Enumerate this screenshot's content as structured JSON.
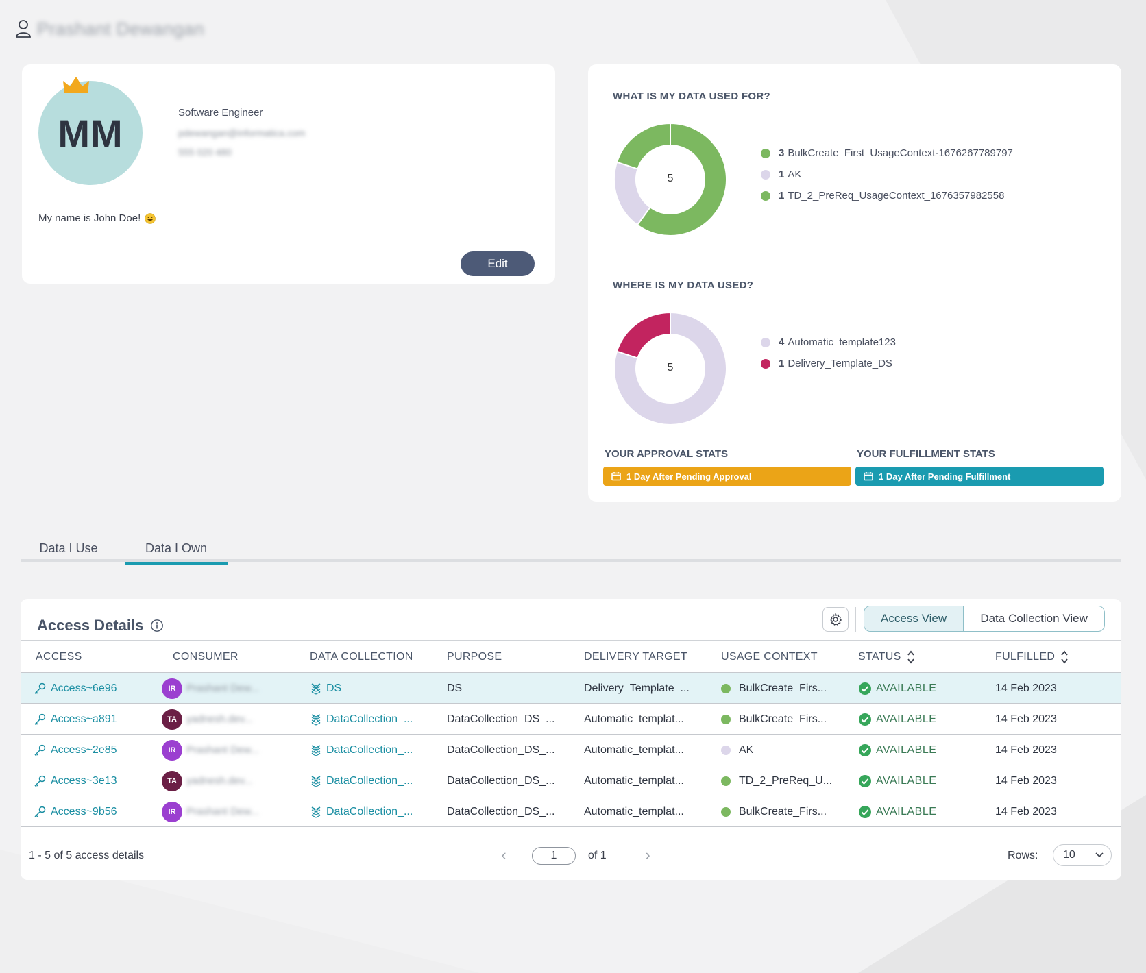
{
  "header": {
    "user_name": "Prashant Dewangan"
  },
  "profile": {
    "initials": "MM",
    "job_title": "Software Engineer",
    "email": "pdewangan@informatica.com",
    "phone": "555 020 480",
    "bio": "My name is John Doe!",
    "edit_label": "Edit"
  },
  "usage_for": {
    "title": "WHAT IS MY DATA USED FOR?",
    "total": "5",
    "items": [
      {
        "count": "3",
        "label": "BulkCreate_First_UsageContext-1676267789797",
        "color": "#7cb860"
      },
      {
        "count": "1",
        "label": "AK",
        "color": "#dcd6ea"
      },
      {
        "count": "1",
        "label": "TD_2_PreReq_UsageContext_1676357982558",
        "color": "#7cb860"
      }
    ]
  },
  "usage_where": {
    "title": "WHERE IS MY DATA USED?",
    "total": "5",
    "items": [
      {
        "count": "4",
        "label": "Automatic_template123",
        "color": "#dcd6ea"
      },
      {
        "count": "1",
        "label": "Delivery_Template_DS",
        "color": "#c2245f"
      }
    ]
  },
  "approval": {
    "label": "YOUR APPROVAL STATS",
    "pill": "1 Day After Pending Approval",
    "color": "#eba417"
  },
  "fulfillment": {
    "label": "YOUR FULFILLMENT STATS",
    "pill": "1 Day After Pending Fulfillment",
    "color": "#1a9bb0"
  },
  "tabs": [
    {
      "label": "Data I Use",
      "active": false
    },
    {
      "label": "Data I Own",
      "active": true
    }
  ],
  "table": {
    "title": "Access Details",
    "views": [
      "Access View",
      "Data Collection View"
    ],
    "columns": [
      "ACCESS",
      "CONSUMER",
      "DATA COLLECTION",
      "PURPOSE",
      "DELIVERY TARGET",
      "USAGE CONTEXT",
      "STATUS",
      "FULFILLED"
    ],
    "rows": [
      {
        "access": "Access~6e96",
        "badge": "IR",
        "badge_color": "#9b3fd0",
        "consumer": "Prashant Dew...",
        "collection": "DS",
        "purpose": "DS",
        "target": "Delivery_Template_...",
        "context": "BulkCreate_Firs...",
        "context_color": "#7cb860",
        "status": "AVAILABLE",
        "fulfilled": "14 Feb 2023"
      },
      {
        "access": "Access~a891",
        "badge": "TA",
        "badge_color": "#6b1f45",
        "consumer": "yadnesh.dev...",
        "collection": "DataCollection_...",
        "purpose": "DataCollection_DS_...",
        "target": "Automatic_templat...",
        "context": "BulkCreate_Firs...",
        "context_color": "#7cb860",
        "status": "AVAILABLE",
        "fulfilled": "14 Feb 2023"
      },
      {
        "access": "Access~2e85",
        "badge": "IR",
        "badge_color": "#9b3fd0",
        "consumer": "Prashant Dew...",
        "collection": "DataCollection_...",
        "purpose": "DataCollection_DS_...",
        "target": "Automatic_templat...",
        "context": "AK",
        "context_color": "#dcd6ea",
        "status": "AVAILABLE",
        "fulfilled": "14 Feb 2023"
      },
      {
        "access": "Access~3e13",
        "badge": "TA",
        "badge_color": "#6b1f45",
        "consumer": "yadnesh.dev...",
        "collection": "DataCollection_...",
        "purpose": "DataCollection_DS_...",
        "target": "Automatic_templat...",
        "context": "TD_2_PreReq_U...",
        "context_color": "#7cb860",
        "status": "AVAILABLE",
        "fulfilled": "14 Feb 2023"
      },
      {
        "access": "Access~9b56",
        "badge": "IR",
        "badge_color": "#9b3fd0",
        "consumer": "Prashant Dew...",
        "collection": "DataCollection_...",
        "purpose": "DataCollection_DS_...",
        "target": "Automatic_templat...",
        "context": "BulkCreate_Firs...",
        "context_color": "#7cb860",
        "status": "AVAILABLE",
        "fulfilled": "14 Feb 2023"
      }
    ],
    "footer_count": "1 - 5 of 5 access details",
    "page": "1",
    "page_of": "of 1",
    "rows_label": "Rows:",
    "rows_value": "10"
  },
  "colors": {
    "accent": "#1a9bb0",
    "edit_button": "#4d5a77",
    "available": "#36a65a"
  }
}
